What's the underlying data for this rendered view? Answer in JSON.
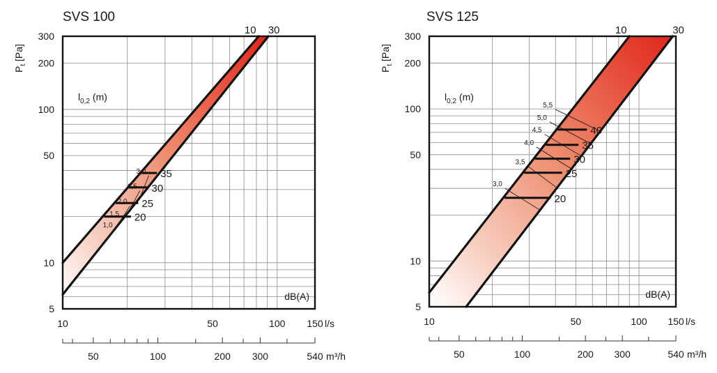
{
  "chart_data": [
    {
      "type": "line",
      "title": "SVS 100",
      "ylabel": "P",
      "ylabel_sub": "t",
      "ylabel_unit": "[Pa]",
      "throw_label": "l",
      "throw_label_sub": "0,2",
      "throw_label_unit": "(m)",
      "db_label": "dB(A)",
      "xlabel": "l/s",
      "xlabel2": "m³/h",
      "xlim": [
        10,
        150
      ],
      "ylim": [
        5,
        300
      ],
      "log_x": true,
      "log_y": true,
      "grid": true,
      "x_ticks": [
        {
          "v": 10,
          "label": "10"
        },
        {
          "v": 50,
          "label": "50"
        },
        {
          "v": 100,
          "label": "100"
        },
        {
          "v": 150,
          "label": "150"
        }
      ],
      "x_grid": [
        20,
        30,
        40,
        50,
        60,
        70,
        80,
        90,
        100
      ],
      "y_ticks": [
        {
          "v": 5,
          "label": "5"
        },
        {
          "v": 10,
          "label": "10"
        },
        {
          "v": 50,
          "label": "50"
        },
        {
          "v": 100,
          "label": "100"
        },
        {
          "v": 200,
          "label": "200"
        },
        {
          "v": 300,
          "label": "300"
        }
      ],
      "y_grid": [
        6,
        7,
        8,
        9,
        10,
        20,
        30,
        40,
        50,
        60,
        70,
        80,
        90,
        100,
        200
      ],
      "m3h_ticks": [
        {
          "v": 50,
          "label": "50"
        },
        {
          "v": 100,
          "label": "100"
        },
        {
          "v": 200,
          "label": "200"
        },
        {
          "v": 300,
          "label": "300"
        },
        {
          "v": 540,
          "label": "540"
        }
      ],
      "m3h_minor": [
        36,
        40,
        60,
        70,
        80,
        90,
        150,
        250,
        400
      ],
      "band": {
        "upper": [
          [
            10,
            10
          ],
          [
            82,
            300
          ]
        ],
        "lower": [
          [
            10,
            6.2
          ],
          [
            91,
            300
          ]
        ],
        "top_labels": [
          "10",
          "30"
        ]
      },
      "sound_lines": [
        {
          "label": "20",
          "q": 20.8,
          "p": 20
        },
        {
          "label": "25",
          "q": 22.5,
          "p": 24.5
        },
        {
          "label": "30",
          "q": 25,
          "p": 31
        },
        {
          "label": "35",
          "q": 27.5,
          "p": 38.5
        }
      ],
      "throw_marks": [
        {
          "label": "1,0",
          "q": 17.6,
          "p": 16.5
        },
        {
          "label": "1,5",
          "q": 18.9,
          "p": 19.5
        },
        {
          "label": "2,0",
          "q": 20.6,
          "p": 23.5
        },
        {
          "label": "2,5",
          "q": 22.9,
          "p": 29.5
        },
        {
          "label": "3,0",
          "q": 25.2,
          "p": 37
        }
      ]
    },
    {
      "type": "line",
      "title": "SVS 125",
      "ylabel": "P",
      "ylabel_sub": "t",
      "ylabel_unit": "[Pa]",
      "throw_label": "l",
      "throw_label_sub": "0,2",
      "throw_label_unit": "(m)",
      "db_label": "dB(A)",
      "xlabel": "l/s",
      "xlabel2": "m³/h",
      "xlim": [
        10,
        150
      ],
      "ylim": [
        5,
        300
      ],
      "log_x": true,
      "log_y": true,
      "grid": true,
      "x_ticks": [
        {
          "v": 10,
          "label": "10"
        },
        {
          "v": 50,
          "label": "50"
        },
        {
          "v": 100,
          "label": "100"
        },
        {
          "v": 150,
          "label": "150"
        }
      ],
      "x_grid": [
        20,
        30,
        40,
        50,
        60,
        70,
        80,
        90,
        100
      ],
      "y_ticks": [
        {
          "v": 5,
          "label": "5"
        },
        {
          "v": 10,
          "label": "10"
        },
        {
          "v": 50,
          "label": "50"
        },
        {
          "v": 100,
          "label": "100"
        },
        {
          "v": 200,
          "label": "200"
        },
        {
          "v": 300,
          "label": "300"
        }
      ],
      "y_grid": [
        6,
        7,
        8,
        9,
        10,
        20,
        30,
        40,
        50,
        60,
        70,
        80,
        90,
        100,
        200
      ],
      "m3h_ticks": [
        {
          "v": 50,
          "label": "50"
        },
        {
          "v": 100,
          "label": "100"
        },
        {
          "v": 200,
          "label": "200"
        },
        {
          "v": 300,
          "label": "300"
        },
        {
          "v": 540,
          "label": "540"
        }
      ],
      "m3h_minor": [
        36,
        40,
        60,
        70,
        80,
        90,
        150,
        250,
        400
      ],
      "band": {
        "upper": [
          [
            10,
            6.2
          ],
          [
            90,
            300
          ]
        ],
        "lower": [
          [
            15,
            5
          ],
          [
            145,
            300
          ]
        ],
        "top_labels": [
          "10",
          "30"
        ]
      },
      "sound_lines": [
        {
          "label": "20",
          "q": 38,
          "p": 26
        },
        {
          "label": "25",
          "q": 43,
          "p": 38
        },
        {
          "label": "30",
          "q": 47,
          "p": 47
        },
        {
          "label": "35",
          "q": 51.5,
          "p": 58
        },
        {
          "label": "40",
          "q": 56.5,
          "p": 73
        }
      ],
      "throw_marks": [
        {
          "label": "3,0",
          "q": 23,
          "p": 30
        },
        {
          "label": "3,5",
          "q": 29.5,
          "p": 42
        },
        {
          "label": "4,0",
          "q": 32.5,
          "p": 56
        },
        {
          "label": "4,5",
          "q": 35.5,
          "p": 68
        },
        {
          "label": "5,0",
          "q": 37.5,
          "p": 82
        },
        {
          "label": "5,5",
          "q": 40,
          "p": 99
        }
      ]
    }
  ]
}
